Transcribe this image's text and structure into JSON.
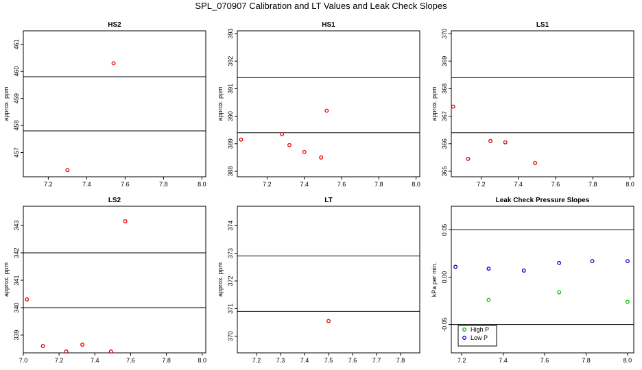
{
  "title": "SPL_070907  Calibration and LT Values and Leak Check Slopes",
  "colors": {
    "points": "#e00000",
    "high_p": "#00c000",
    "low_p": "#0000e0",
    "lines": "#000000"
  },
  "chart_data": [
    {
      "type": "scatter",
      "title": "HS2",
      "ylabel": "approx. ppm",
      "xlim": [
        7.07,
        8.02
      ],
      "ylim": [
        456.1,
        461.5
      ],
      "xticks": [
        7.2,
        7.4,
        7.6,
        7.8,
        8.0
      ],
      "xtick_labels": [
        "7.2",
        "7.4",
        "7.6",
        "7.8",
        "8.0"
      ],
      "yticks": [
        457,
        458,
        459,
        460,
        461
      ],
      "ytick_labels": [
        "457",
        "458",
        "459",
        "460",
        "461"
      ],
      "hlines": [
        459.8,
        457.8
      ],
      "series": [
        {
          "x": [
            7.3,
            7.54
          ],
          "y": [
            456.35,
            460.3
          ]
        }
      ]
    },
    {
      "type": "scatter",
      "title": "HS1",
      "ylabel": "approx. ppm",
      "xlim": [
        7.04,
        8.02
      ],
      "ylim": [
        387.8,
        393.1
      ],
      "xticks": [
        7.2,
        7.4,
        7.6,
        7.8,
        8.0
      ],
      "xtick_labels": [
        "7.2",
        "7.4",
        "7.6",
        "7.8",
        "8.0"
      ],
      "yticks": [
        388,
        389,
        390,
        391,
        392,
        393
      ],
      "ytick_labels": [
        "388",
        "389",
        "390",
        "391",
        "392",
        "393"
      ],
      "hlines": [
        391.4,
        389.4
      ],
      "series": [
        {
          "x": [
            7.06,
            7.28,
            7.32,
            7.4,
            7.49,
            7.52
          ],
          "y": [
            389.15,
            389.35,
            388.95,
            388.7,
            388.5,
            390.2
          ]
        }
      ]
    },
    {
      "type": "scatter",
      "title": "LS1",
      "ylabel": "approx. ppm",
      "xlim": [
        7.04,
        8.02
      ],
      "ylim": [
        364.8,
        370.1
      ],
      "xticks": [
        7.2,
        7.4,
        7.6,
        7.8,
        8.0
      ],
      "xtick_labels": [
        "7.2",
        "7.4",
        "7.6",
        "7.8",
        "8.0"
      ],
      "yticks": [
        365,
        366,
        367,
        368,
        369,
        370
      ],
      "ytick_labels": [
        "365",
        "366",
        "367",
        "368",
        "369",
        "370"
      ],
      "hlines": [
        368.4,
        366.4
      ],
      "series": [
        {
          "x": [
            7.05,
            7.13,
            7.25,
            7.33,
            7.49
          ],
          "y": [
            367.35,
            365.45,
            366.1,
            366.05,
            365.3
          ]
        }
      ]
    },
    {
      "type": "scatter",
      "title": "LS2",
      "ylabel": "approx. ppm",
      "xlim": [
        7.0,
        8.02
      ],
      "ylim": [
        338.35,
        343.7
      ],
      "xticks": [
        7.0,
        7.2,
        7.4,
        7.6,
        7.8,
        8.0
      ],
      "xtick_labels": [
        "7.0",
        "7.2",
        "7.4",
        "7.6",
        "7.8",
        "8.0"
      ],
      "yticks": [
        339,
        340,
        341,
        342,
        343
      ],
      "ytick_labels": [
        "339",
        "340",
        "341",
        "342",
        "343"
      ],
      "hlines": [
        342.0,
        340.0
      ],
      "series": [
        {
          "x": [
            7.02,
            7.11,
            7.24,
            7.33,
            7.49,
            7.57
          ],
          "y": [
            340.3,
            338.6,
            338.4,
            338.65,
            338.4,
            343.15
          ]
        }
      ]
    },
    {
      "type": "scatter",
      "title": "LT",
      "ylabel": "approx. ppm",
      "xlim": [
        7.12,
        7.88
      ],
      "ylim": [
        369.4,
        374.7
      ],
      "xticks": [
        7.2,
        7.3,
        7.4,
        7.5,
        7.6,
        7.7,
        7.8
      ],
      "xtick_labels": [
        "7.2",
        "7.3",
        "7.4",
        "7.5",
        "7.6",
        "7.7",
        "7.8"
      ],
      "yticks": [
        370,
        371,
        372,
        373,
        374
      ],
      "ytick_labels": [
        "370",
        "371",
        "372",
        "373",
        "374"
      ],
      "hlines": [
        372.9,
        370.9
      ],
      "series": [
        {
          "x": [
            7.5
          ],
          "y": [
            370.55
          ]
        }
      ]
    },
    {
      "type": "scatter",
      "title": "Leak Check Pressure Slopes",
      "ylabel": "kPa per min.",
      "xlim": [
        7.15,
        8.03
      ],
      "ylim": [
        -0.08,
        0.075
      ],
      "xticks": [
        7.2,
        7.4,
        7.6,
        7.8,
        8.0
      ],
      "xtick_labels": [
        "7.2",
        "7.4",
        "7.6",
        "7.8",
        "8.0"
      ],
      "yticks": [
        -0.05,
        0.0,
        0.05
      ],
      "ytick_labels": [
        "-0.05",
        "0.00",
        "0.05"
      ],
      "hlines": [
        0.05,
        -0.05
      ],
      "legend": {
        "position": "bottom-left"
      },
      "series": [
        {
          "name": "High P",
          "color": "#00c000",
          "x": [
            7.33,
            7.67,
            8.0
          ],
          "y": [
            -0.024,
            -0.016,
            -0.026
          ]
        },
        {
          "name": "Low P",
          "color": "#0000e0",
          "x": [
            7.17,
            7.33,
            7.5,
            7.67,
            7.83,
            8.0
          ],
          "y": [
            0.011,
            0.009,
            0.007,
            0.015,
            0.017,
            0.017
          ]
        }
      ]
    }
  ]
}
